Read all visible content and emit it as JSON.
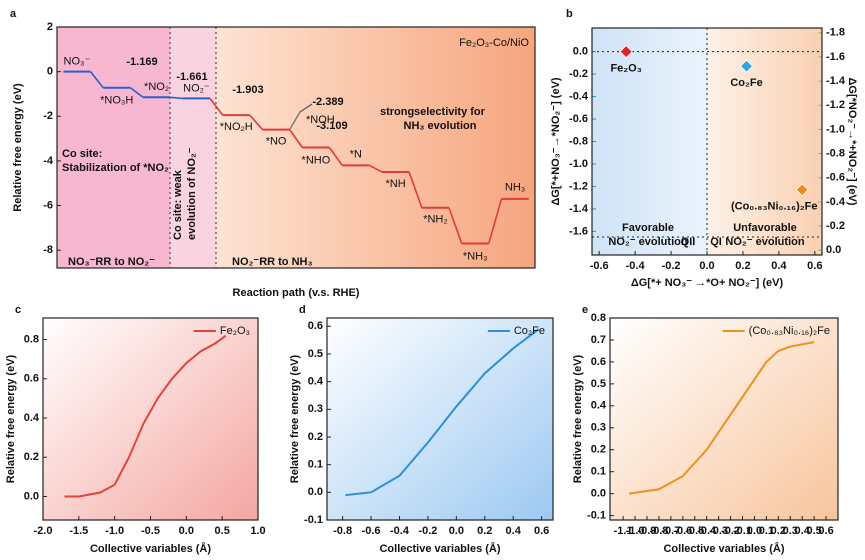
{
  "chart_data": [
    {
      "type": "step",
      "panel": "a",
      "title": "Fe₂O₃-Co/NiO",
      "x_label": "Reaction path (v.s. RHE)",
      "y_label": "Relative free energy (eV)",
      "categories": [
        "NO₃⁻",
        "*NO₃H",
        "*NO₂",
        "NO₂⁻",
        "*NO₂H",
        "*NO",
        "*NHO",
        "*N",
        "*NH",
        "*NH₂",
        "*NH₃",
        "NH₃"
      ],
      "series": [
        {
          "color": "#2a62c9",
          "values": [
            0,
            -0.72,
            -1.15,
            -1.2,
            null,
            null,
            null,
            null,
            null,
            null,
            null,
            null
          ]
        },
        {
          "color": "#e23a3a",
          "values": [
            null,
            null,
            null,
            null,
            -1.95,
            -2.6,
            -3.4,
            -4.2,
            -4.5,
            -6.1,
            -7.7,
            -5.7
          ]
        }
      ],
      "ylim": [
        -8.8,
        2.0
      ],
      "yticks": [
        -8,
        -6,
        -4,
        -2,
        0,
        2
      ],
      "energy_labels": [
        -1.169,
        -1.661,
        -1.903,
        -2.389,
        -3.109
      ],
      "notes": [
        "*NOH",
        "Co site:",
        "Stabilization of *NO₂",
        "Co site:",
        "weak",
        "evolution of NO₂⁻",
        "strong",
        "selectivity for",
        "NH₃ evolution",
        "NO₃⁻RR to NO₂⁻",
        "NO₂⁻RR to NH₃"
      ]
    },
    {
      "type": "scatter",
      "panel": "b",
      "x_label": "ΔG[*+ NO₃⁻ →*O+ NO₂⁻] (eV)",
      "y_label": "ΔG[*+NO₃⁻→*NO₂⁻] (eV)",
      "y2_label": "ΔG[*NO₂⁻→*+NO₂⁻] (eV)",
      "xlim": [
        -0.64,
        0.64
      ],
      "xticks": [
        -0.6,
        -0.4,
        -0.2,
        {
          "value": 0,
          "label": "0.0"
        },
        0.2,
        0.4,
        0.6
      ],
      "ylim": [
        -1.81,
        0.21
      ],
      "yticks": [
        {
          "value": 0,
          "label": "0.0"
        },
        -0.2,
        -0.4,
        -0.6,
        -0.8,
        {
          "value": -1,
          "label": "-1.0"
        },
        -1.2,
        -1.4,
        -1.6
      ],
      "y2lim": [
        0.04,
        -1.84
      ],
      "y2ticks": [
        -1.8,
        -1.6,
        -1.4,
        -1.2,
        {
          "value": -1,
          "label": "-1.0"
        },
        -0.8,
        -0.6,
        -0.4,
        -0.2,
        {
          "value": 0,
          "label": "0.0"
        }
      ],
      "hlines": [
        0,
        -1.65
      ],
      "vlines": [
        0
      ],
      "series": [
        {
          "name": "Fe₂O₃",
          "color": "#e0202a",
          "x": [
            -0.45
          ],
          "values": [
            0
          ]
        },
        {
          "name": "Co₂Fe",
          "color": "#2aa7e0",
          "x": [
            0.22
          ],
          "values": [
            -0.13
          ]
        },
        {
          "name": "(Co₀.₈₃Ni₀.₁₆)₂Fe",
          "color": "#ef8a1f",
          "x": [
            0.53
          ],
          "values": [
            -1.23
          ]
        }
      ],
      "notes": [
        "Favorable",
        "NO₂⁻ evolution",
        "Unfavorable",
        "NO₂⁻ evolution",
        "QII",
        "QI"
      ]
    },
    {
      "type": "line",
      "panel": "c",
      "x_label": "Collective variables (Å)",
      "y_label": "Relative free energy (eV)",
      "xlim": [
        -2.0,
        1.0
      ],
      "xticks": [
        {
          "value": -2,
          "label": "-2.0"
        },
        -1.5,
        {
          "value": -1,
          "label": "-1.0"
        },
        -0.5,
        {
          "value": 0,
          "label": "0.0"
        },
        0.5,
        {
          "value": 1,
          "label": "1.0"
        }
      ],
      "ylim": [
        -0.12,
        0.91
      ],
      "yticks": [
        {
          "value": 0,
          "label": "0.0"
        },
        0.2,
        0.4,
        0.6,
        0.8
      ],
      "series": [
        {
          "name": "Fe₂O₃",
          "color": "#e8413c",
          "x": [
            -1.7,
            -1.5,
            -1.2,
            -1.0,
            -0.8,
            -0.6,
            -0.4,
            -0.2,
            0.0,
            0.2,
            0.4,
            0.55
          ],
          "values": [
            0.0,
            0.0,
            0.02,
            0.06,
            0.2,
            0.37,
            0.5,
            0.6,
            0.68,
            0.74,
            0.78,
            0.82
          ]
        }
      ]
    },
    {
      "type": "line",
      "panel": "d",
      "x_label": "Collective variables (Å)",
      "y_label": "Relative free energy (eV)",
      "xlim": [
        -0.91,
        0.68
      ],
      "xticks": [
        -0.8,
        -0.6,
        -0.4,
        -0.2,
        {
          "value": 0,
          "label": "0.0"
        },
        0.2,
        0.4,
        0.6
      ],
      "ylim": [
        -0.1,
        0.63
      ],
      "yticks": [
        -0.1,
        {
          "value": 0,
          "label": "0.0"
        },
        0.1,
        0.2,
        0.3,
        0.4,
        0.5,
        0.6
      ],
      "series": [
        {
          "name": "Co₂Fe",
          "color": "#2b8fd9",
          "x": [
            -0.78,
            -0.6,
            -0.4,
            -0.2,
            0.0,
            0.2,
            0.4,
            0.58
          ],
          "values": [
            -0.01,
            0.0,
            0.06,
            0.18,
            0.31,
            0.43,
            0.52,
            0.59
          ]
        }
      ]
    },
    {
      "type": "line",
      "panel": "e",
      "x_label": "Collective variables (Å)",
      "y_label": "Relative free energy (eV)",
      "xlim": [
        -1.21,
        0.7
      ],
      "xticks": [
        -1.1,
        {
          "value": -1,
          "label": "-1.0"
        },
        -0.9,
        -0.8,
        -0.7,
        -0.6,
        -0.5,
        -0.4,
        -0.3,
        -0.2,
        -0.1,
        {
          "value": 0,
          "label": "0.0"
        },
        0.1,
        0.2,
        0.3,
        0.4,
        0.5,
        0.6
      ],
      "ylim": [
        -0.12,
        0.8
      ],
      "yticks": [
        -0.1,
        {
          "value": 0,
          "label": "0.0"
        },
        0.1,
        0.2,
        0.3,
        0.4,
        0.5,
        0.6,
        0.7,
        0.8
      ],
      "series": [
        {
          "name": "(Co₀.₈₃Ni₀.₁₆)₂Fe",
          "color": "#f0901a",
          "x": [
            -1.05,
            -0.8,
            -0.6,
            -0.4,
            -0.2,
            0.0,
            0.1,
            0.2,
            0.3,
            0.5
          ],
          "values": [
            0.0,
            0.02,
            0.08,
            0.2,
            0.36,
            0.52,
            0.6,
            0.65,
            0.67,
            0.69
          ]
        }
      ]
    }
  ]
}
